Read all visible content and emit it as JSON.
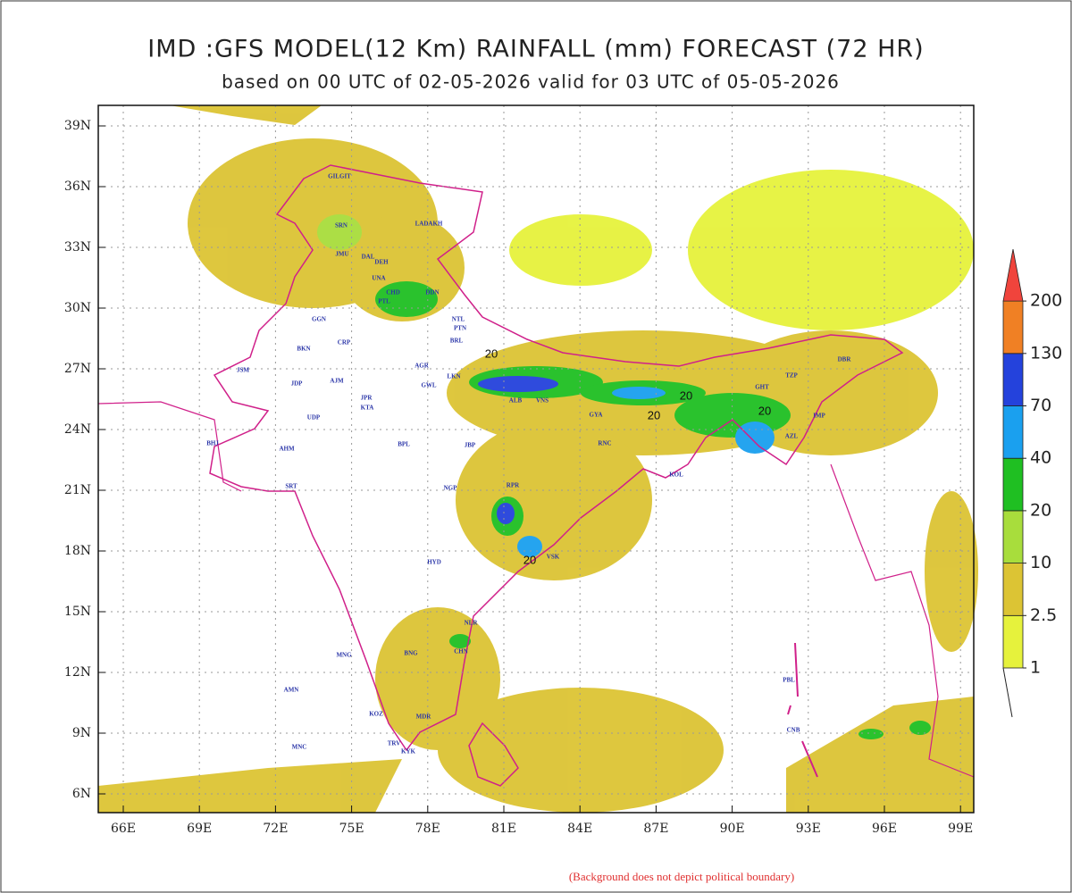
{
  "title": "IMD :GFS MODEL(12 Km) RAINFALL (mm) FORECAST (72 HR)",
  "subtitle": "based on 00 UTC of 02-05-2026 valid for 03 UTC of 05-05-2026",
  "map": {
    "lat_labels": [
      "39N",
      "36N",
      "33N",
      "30N",
      "27N",
      "24N",
      "21N",
      "18N",
      "15N",
      "12N",
      "9N",
      "6N"
    ],
    "lon_labels": [
      "66E",
      "69E",
      "72E",
      "75E",
      "78E",
      "81E",
      "84E",
      "87E",
      "90E",
      "93E",
      "96E",
      "99E"
    ],
    "places": [
      "GILGIT",
      "LADAKH",
      "SRN",
      "JMU",
      "DAL",
      "DEH",
      "UNA",
      "CHD",
      "DDN",
      "PTL",
      "GGN",
      "NTL",
      "BKN",
      "CRP",
      "BRL",
      "JSM",
      "JDP",
      "AJM",
      "JPR",
      "AGR",
      "LKN",
      "KTA",
      "GWL",
      "ALB",
      "VNS",
      "PTN",
      "GYA",
      "BHJ",
      "AHM",
      "UDP",
      "BPL",
      "JBP",
      "RNC",
      "KOL",
      "DBR",
      "TZP",
      "GHT",
      "IMP",
      "AZL",
      "SRT",
      "NGP",
      "RPR",
      "VSK",
      "HYD",
      "NLR",
      "CHN",
      "BNG",
      "MNG",
      "KOZ",
      "TRV",
      "MDR",
      "KYK",
      "PBL",
      "CNB",
      "MNC",
      "AMN"
    ],
    "contour_labels": [
      20,
      20,
      20,
      20,
      20
    ]
  },
  "colorbar": {
    "levels": [
      1,
      {
        "value": 2.5,
        "label": "2.5"
      },
      10,
      20,
      40,
      70,
      130,
      200
    ],
    "colors": [
      "#e6f23c",
      "#dcc434",
      "#a8dd3c",
      "#1fbf22",
      "#1aa0ef",
      "#2442dc",
      "#f08024",
      "#f0443c"
    ]
  },
  "note": "(Background does not depict political boundary)"
}
